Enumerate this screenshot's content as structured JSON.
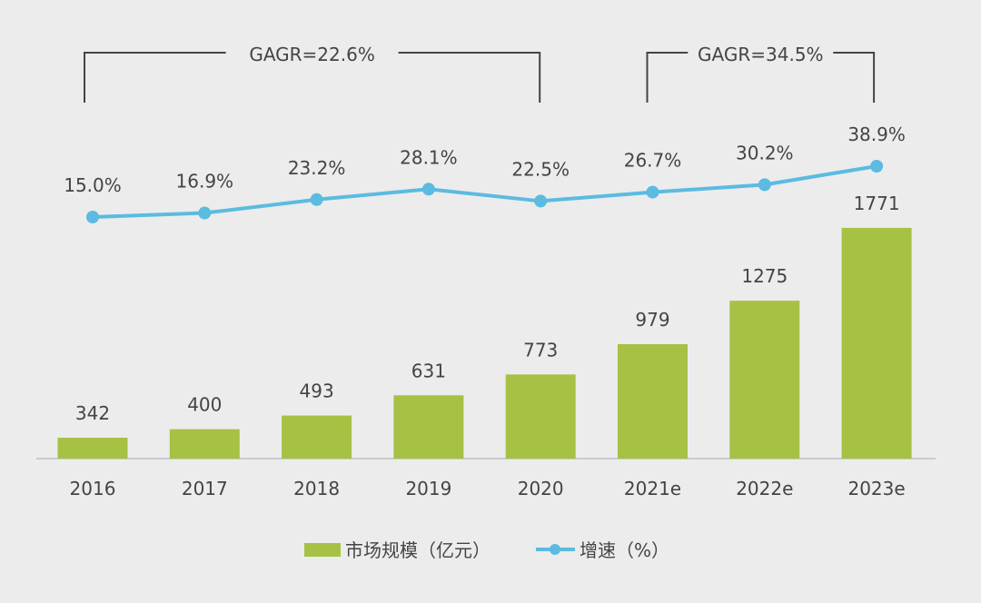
{
  "chart_data": {
    "type": "bar+line",
    "categories": [
      "2016",
      "2017",
      "2018",
      "2019",
      "2020",
      "2021e",
      "2022e",
      "2023e"
    ],
    "series": [
      {
        "name": "市场规模（亿元）",
        "type": "bar",
        "values": [
          342,
          400,
          493,
          631,
          773,
          979,
          1275,
          1771
        ],
        "color": "#a7c144"
      },
      {
        "name": "增速（%）",
        "type": "line",
        "values": [
          15.0,
          16.9,
          23.2,
          28.1,
          22.5,
          26.7,
          30.2,
          38.9
        ],
        "labels": [
          "15.0%",
          "16.9%",
          "23.2%",
          "28.1%",
          "22.5%",
          "26.7%",
          "30.2%",
          "38.9%"
        ],
        "color": "#5bbbe0"
      }
    ],
    "annotations": [
      {
        "text": "GAGR=22.6%",
        "from": "2016",
        "to": "2020"
      },
      {
        "text": "GAGR=34.5%",
        "from": "2021e",
        "to": "2023e"
      }
    ],
    "legend_position": "bottom",
    "grid": false
  }
}
